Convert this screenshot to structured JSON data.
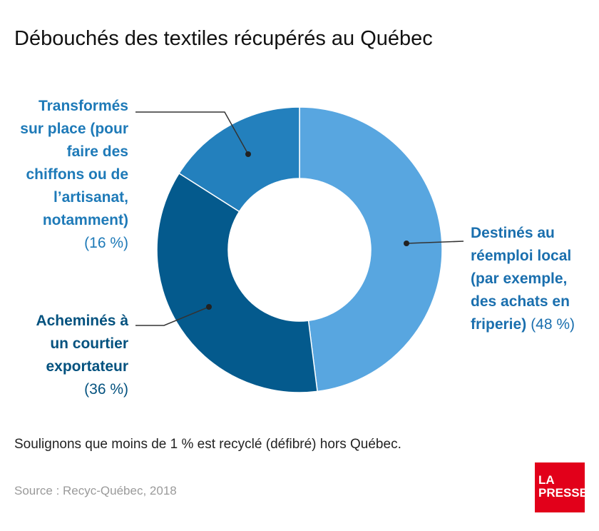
{
  "title": "Débouchés des textiles récupérés au Québec",
  "note": "Soulignons que moins de 1 % est recyclé (défibré) hors Québec.",
  "source": "Source : Recyc-Québec, 2018",
  "logo": {
    "line1": "LA",
    "line2": "PRESSE",
    "color": "#e2001a"
  },
  "chart_data": {
    "type": "pie",
    "donut": true,
    "title": "Débouchés des textiles récupérés au Québec",
    "slices": [
      {
        "label": "Destinés au réemploi local (par exemple, des achats en friperie)",
        "label_lines": [
          "Destinés au",
          "réemploi local",
          "(par exemple,",
          "des achats en",
          "friperie)"
        ],
        "pct_text": "(48 %)",
        "value": 48,
        "color": "#58a6e0",
        "text_color": "#1a6fae"
      },
      {
        "label": "Acheminés à un courtier exportateur",
        "label_lines": [
          "Acheminés à",
          "un courtier",
          "exportateur"
        ],
        "pct_text": "(36 %)",
        "value": 36,
        "color": "#045a8d",
        "text_color": "#04527f"
      },
      {
        "label": "Transformés sur place (pour faire des chiffons ou de l’artisanat, notamment)",
        "label_lines": [
          "Transformés",
          "sur place (pour",
          "faire des",
          "chiffons ou de",
          "l’artisanat,",
          "notamment)"
        ],
        "pct_text": "(16 %)",
        "value": 16,
        "color": "#2380bd",
        "text_color": "#1e7ab8"
      }
    ]
  }
}
